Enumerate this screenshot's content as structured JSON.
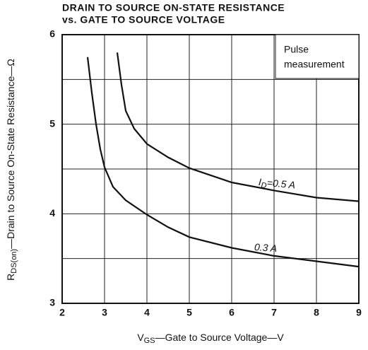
{
  "chart_data": {
    "type": "line",
    "title": "DRAIN TO SOURCE ON-STATE RESISTANCE",
    "subtitle": "vs. GATE TO SOURCE VOLTAGE",
    "x_label": {
      "main": "V",
      "sub": "GS",
      "rest": "—Gate to Source Voltage—V"
    },
    "y_label": {
      "main": "R",
      "sub": "DS(on)",
      "rest": "—Drain to Source On-State Resistance—Ω"
    },
    "annotation": [
      "Pulse",
      "measurement"
    ],
    "xlim": [
      2,
      9
    ],
    "xticks": [
      2,
      3,
      4,
      5,
      6,
      7,
      8,
      9
    ],
    "ylim": [
      3,
      6
    ],
    "yticks": [
      3,
      4,
      5,
      6
    ],
    "y_minor_grid": [
      3.5,
      4.5,
      5.5
    ],
    "grid": true,
    "series": [
      {
        "name": {
          "main": "I",
          "sub": "D",
          "rest": "=0.5 A"
        },
        "color": "#111111",
        "x": [
          3.3,
          3.4,
          3.5,
          3.7,
          4,
          4.5,
          5,
          6,
          7,
          8,
          9
        ],
        "values": [
          5.8,
          5.44,
          5.15,
          4.95,
          4.78,
          4.63,
          4.51,
          4.35,
          4.26,
          4.18,
          4.14
        ]
      },
      {
        "name": {
          "main": "0.3 A"
        },
        "color": "#111111",
        "x": [
          2.6,
          2.7,
          2.8,
          2.9,
          3,
          3.2,
          3.5,
          4,
          4.5,
          5,
          6,
          7,
          8,
          9
        ],
        "values": [
          5.75,
          5.35,
          5.0,
          4.72,
          4.52,
          4.3,
          4.15,
          3.99,
          3.85,
          3.74,
          3.62,
          3.53,
          3.47,
          3.41
        ]
      }
    ]
  }
}
